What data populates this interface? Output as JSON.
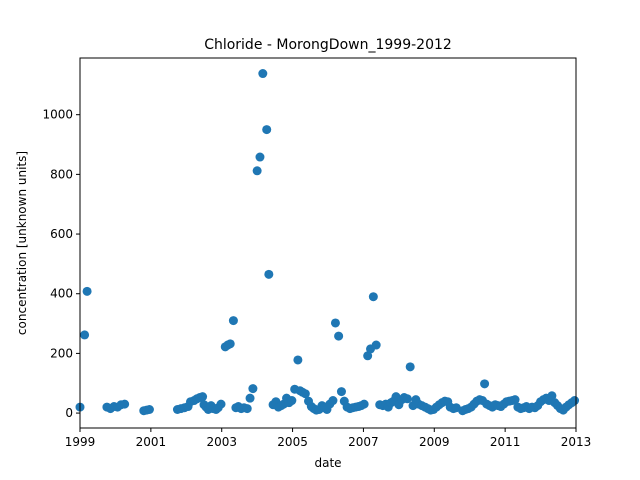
{
  "chart_data": {
    "type": "scatter",
    "title": "Chloride - MorongDown_1999-2012",
    "xlabel": "date",
    "ylabel": "concentration [unknown units]",
    "xlim": [
      1999.0,
      2013.0
    ],
    "ylim": [
      -50,
      1190
    ],
    "xticks": [
      1999,
      2001,
      2003,
      2005,
      2007,
      2009,
      2011,
      2013
    ],
    "xtick_labels": [
      "1999",
      "2001",
      "2003",
      "2005",
      "2007",
      "2009",
      "2011",
      "2013"
    ],
    "yticks": [
      0,
      200,
      400,
      600,
      800,
      1000
    ],
    "ytick_labels": [
      "0",
      "200",
      "400",
      "600",
      "800",
      "1000"
    ],
    "grid": false,
    "legend": "none",
    "marker_color": "#1f77b4",
    "series": [
      {
        "points": [
          [
            1999.0,
            20
          ],
          [
            1999.13,
            262
          ],
          [
            1999.2,
            408
          ],
          [
            1999.76,
            20
          ],
          [
            1999.86,
            15
          ],
          [
            1999.96,
            22
          ],
          [
            2000.06,
            20
          ],
          [
            2000.16,
            28
          ],
          [
            2000.26,
            30
          ],
          [
            2000.8,
            8
          ],
          [
            2000.88,
            10
          ],
          [
            2000.96,
            12
          ],
          [
            2001.75,
            12
          ],
          [
            2001.85,
            15
          ],
          [
            2001.95,
            18
          ],
          [
            2002.05,
            22
          ],
          [
            2002.12,
            38
          ],
          [
            2002.22,
            42
          ],
          [
            2002.3,
            48
          ],
          [
            2002.38,
            52
          ],
          [
            2002.46,
            55
          ],
          [
            2002.5,
            28
          ],
          [
            2002.56,
            20
          ],
          [
            2002.62,
            12
          ],
          [
            2002.7,
            25
          ],
          [
            2002.76,
            15
          ],
          [
            2002.84,
            12
          ],
          [
            2002.9,
            18
          ],
          [
            2002.98,
            30
          ],
          [
            2003.1,
            222
          ],
          [
            2003.17,
            228
          ],
          [
            2003.24,
            232
          ],
          [
            2003.33,
            310
          ],
          [
            2003.4,
            18
          ],
          [
            2003.47,
            22
          ],
          [
            2003.55,
            15
          ],
          [
            2003.63,
            18
          ],
          [
            2003.72,
            15
          ],
          [
            2003.8,
            50
          ],
          [
            2003.88,
            82
          ],
          [
            2004.0,
            812
          ],
          [
            2004.08,
            858
          ],
          [
            2004.16,
            1138
          ],
          [
            2004.27,
            950
          ],
          [
            2004.33,
            465
          ],
          [
            2004.45,
            28
          ],
          [
            2004.53,
            38
          ],
          [
            2004.6,
            20
          ],
          [
            2004.68,
            25
          ],
          [
            2004.75,
            30
          ],
          [
            2004.83,
            50
          ],
          [
            2004.9,
            35
          ],
          [
            2004.98,
            42
          ],
          [
            2005.06,
            80
          ],
          [
            2005.15,
            178
          ],
          [
            2005.21,
            75
          ],
          [
            2005.28,
            70
          ],
          [
            2005.36,
            65
          ],
          [
            2005.45,
            40
          ],
          [
            2005.53,
            22
          ],
          [
            2005.6,
            15
          ],
          [
            2005.67,
            10
          ],
          [
            2005.75,
            12
          ],
          [
            2005.83,
            25
          ],
          [
            2005.9,
            18
          ],
          [
            2005.97,
            12
          ],
          [
            2006.05,
            30
          ],
          [
            2006.14,
            42
          ],
          [
            2006.21,
            302
          ],
          [
            2006.3,
            258
          ],
          [
            2006.38,
            72
          ],
          [
            2006.46,
            40
          ],
          [
            2006.54,
            20
          ],
          [
            2006.62,
            15
          ],
          [
            2006.7,
            18
          ],
          [
            2006.78,
            20
          ],
          [
            2006.86,
            22
          ],
          [
            2006.94,
            25
          ],
          [
            2007.02,
            30
          ],
          [
            2007.12,
            192
          ],
          [
            2007.2,
            215
          ],
          [
            2007.28,
            390
          ],
          [
            2007.36,
            228
          ],
          [
            2007.46,
            28
          ],
          [
            2007.55,
            25
          ],
          [
            2007.63,
            30
          ],
          [
            2007.7,
            20
          ],
          [
            2007.78,
            35
          ],
          [
            2007.85,
            40
          ],
          [
            2007.92,
            55
          ],
          [
            2008.0,
            28
          ],
          [
            2008.08,
            45
          ],
          [
            2008.15,
            52
          ],
          [
            2008.24,
            48
          ],
          [
            2008.32,
            155
          ],
          [
            2008.4,
            25
          ],
          [
            2008.48,
            45
          ],
          [
            2008.56,
            30
          ],
          [
            2008.65,
            25
          ],
          [
            2008.74,
            20
          ],
          [
            2008.82,
            15
          ],
          [
            2008.9,
            10
          ],
          [
            2008.98,
            12
          ],
          [
            2009.06,
            20
          ],
          [
            2009.14,
            28
          ],
          [
            2009.22,
            35
          ],
          [
            2009.3,
            40
          ],
          [
            2009.38,
            38
          ],
          [
            2009.45,
            20
          ],
          [
            2009.54,
            15
          ],
          [
            2009.62,
            18
          ],
          [
            2009.8,
            8
          ],
          [
            2009.88,
            12
          ],
          [
            2009.96,
            15
          ],
          [
            2010.04,
            20
          ],
          [
            2010.12,
            30
          ],
          [
            2010.2,
            40
          ],
          [
            2010.28,
            45
          ],
          [
            2010.36,
            42
          ],
          [
            2010.42,
            98
          ],
          [
            2010.48,
            30
          ],
          [
            2010.56,
            25
          ],
          [
            2010.64,
            20
          ],
          [
            2010.72,
            28
          ],
          [
            2010.8,
            25
          ],
          [
            2010.88,
            22
          ],
          [
            2010.96,
            30
          ],
          [
            2011.04,
            38
          ],
          [
            2011.12,
            40
          ],
          [
            2011.2,
            42
          ],
          [
            2011.28,
            45
          ],
          [
            2011.36,
            20
          ],
          [
            2011.44,
            15
          ],
          [
            2011.52,
            18
          ],
          [
            2011.6,
            22
          ],
          [
            2011.68,
            15
          ],
          [
            2011.76,
            20
          ],
          [
            2011.84,
            18
          ],
          [
            2011.92,
            25
          ],
          [
            2012.0,
            38
          ],
          [
            2012.08,
            45
          ],
          [
            2012.16,
            50
          ],
          [
            2012.24,
            42
          ],
          [
            2012.32,
            58
          ],
          [
            2012.4,
            35
          ],
          [
            2012.48,
            25
          ],
          [
            2012.56,
            15
          ],
          [
            2012.64,
            10
          ],
          [
            2012.72,
            20
          ],
          [
            2012.8,
            28
          ],
          [
            2012.88,
            35
          ],
          [
            2012.96,
            42
          ]
        ]
      }
    ]
  }
}
